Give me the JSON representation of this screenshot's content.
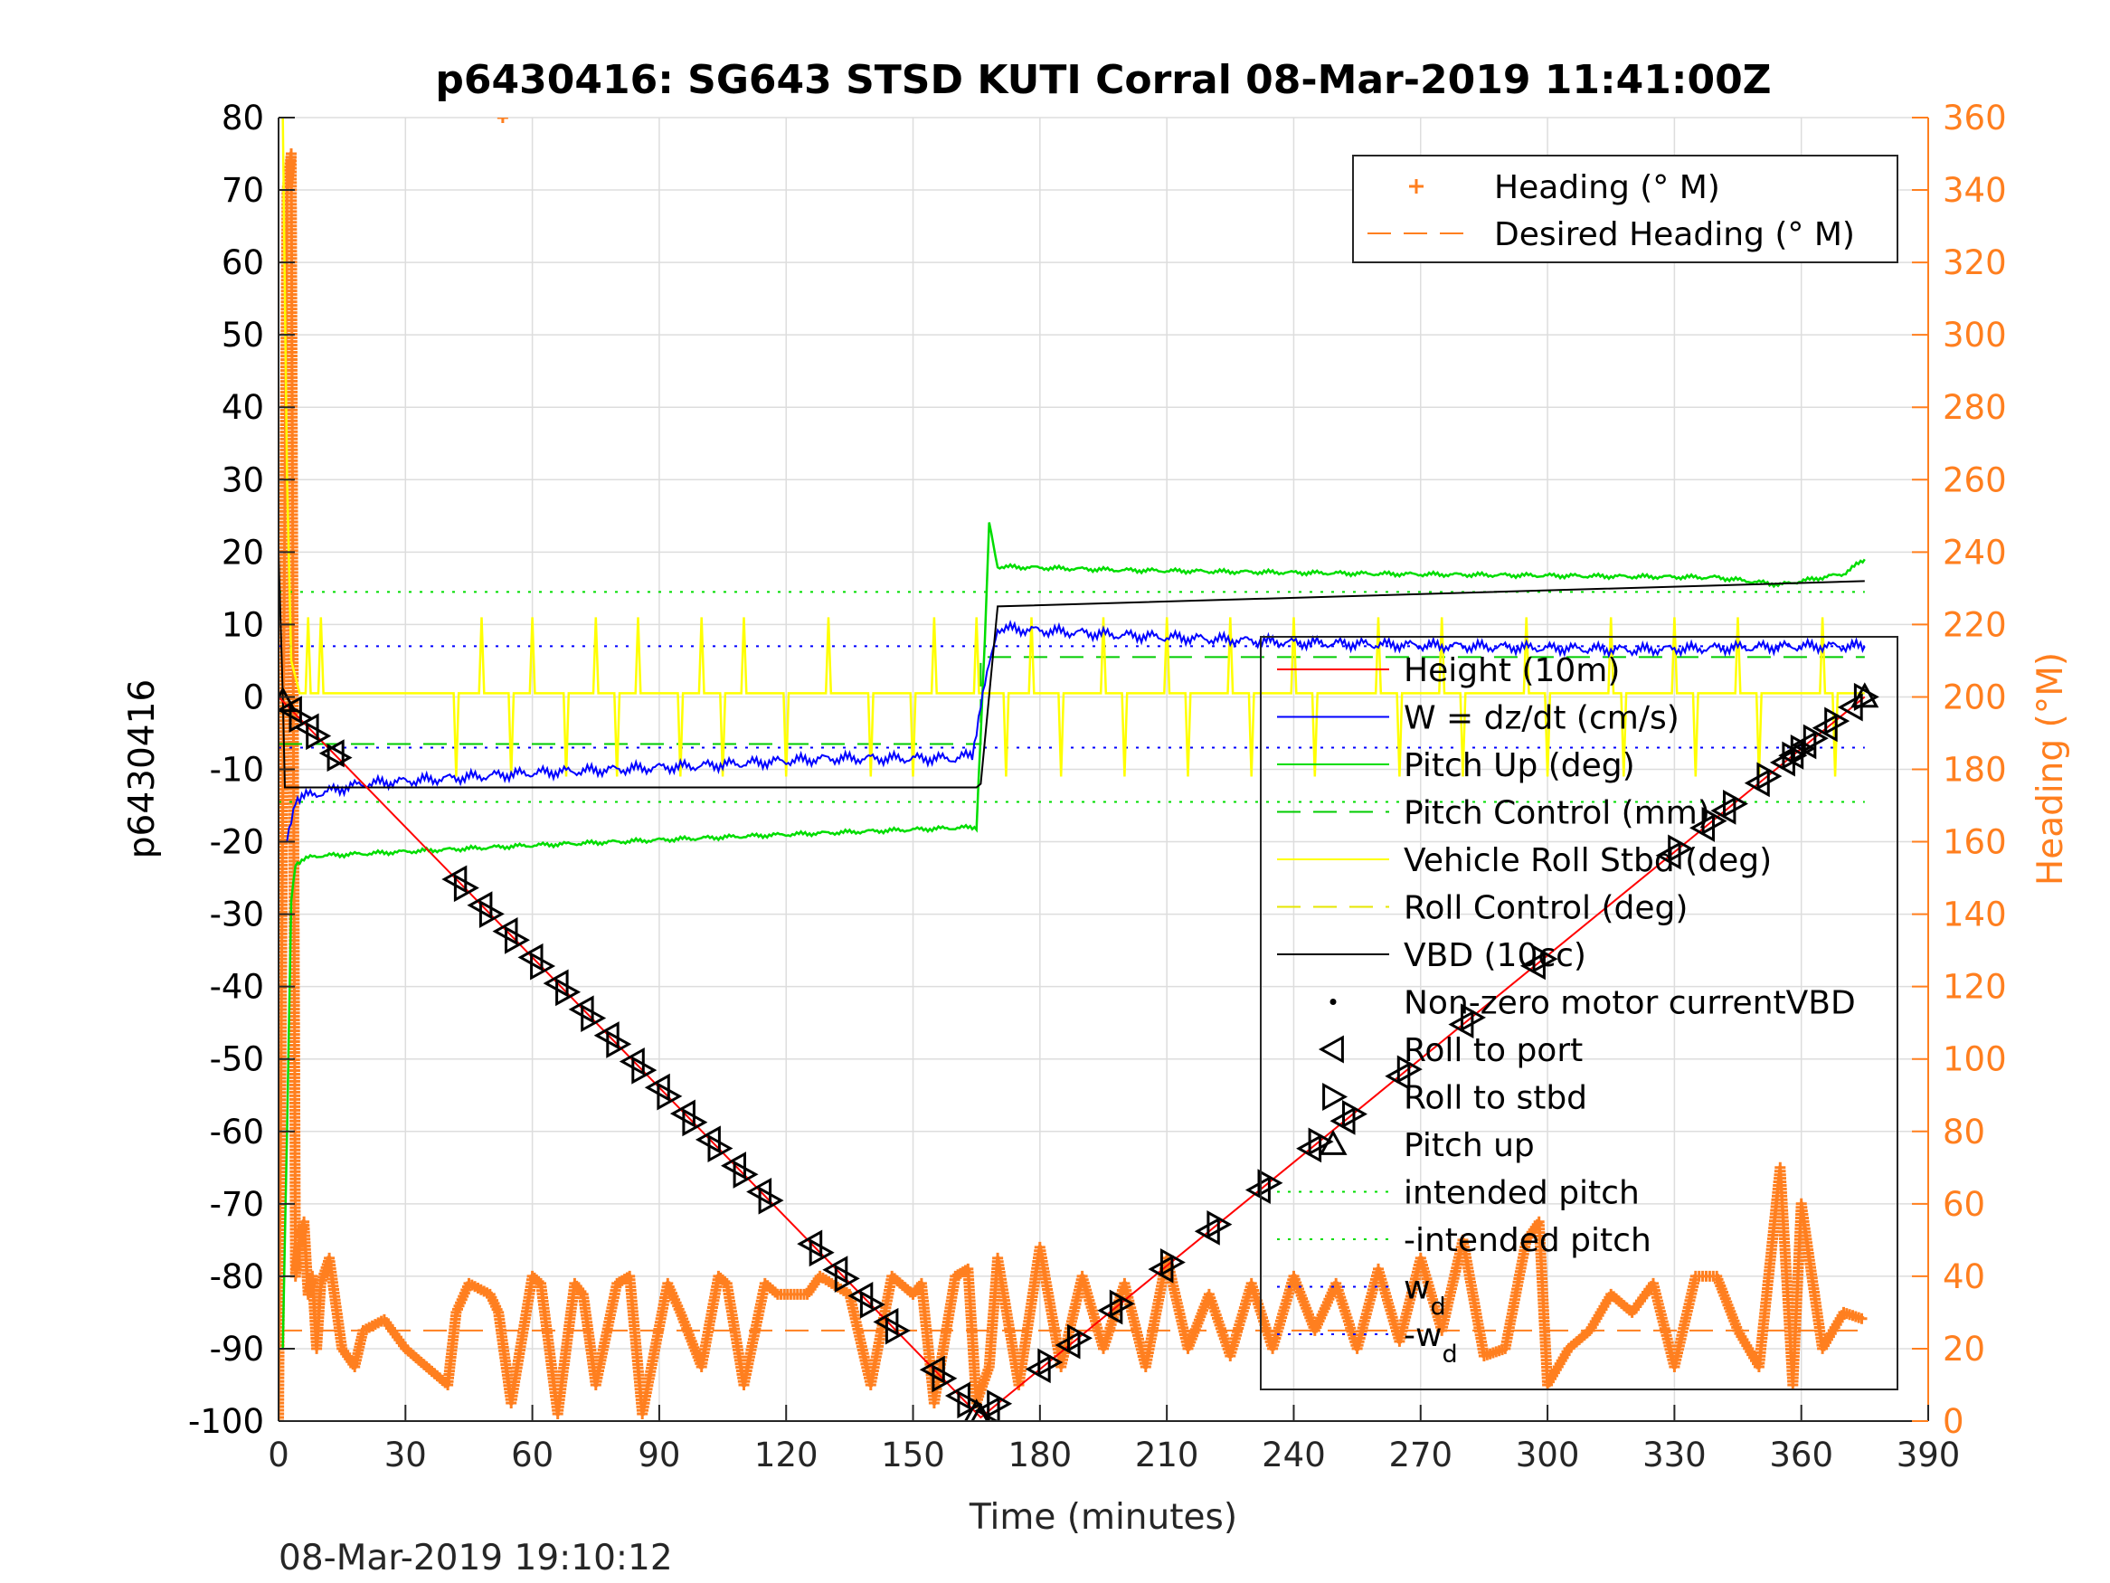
{
  "figure": {
    "timestamp": "08-Mar-2019 19:10:12"
  },
  "chart_data": {
    "type": "line",
    "title": "p6430416: SG643 STSD KUTI Corral 08-Mar-2019 11:41:00Z",
    "xlabel": "Time (minutes)",
    "ylabel_left": "p6430416",
    "ylabel_right": "Heading (°M)",
    "xlim": [
      0,
      390
    ],
    "ylim_left": [
      -100,
      80
    ],
    "ylim_right": [
      0,
      360
    ],
    "xticks": [
      "0",
      "30",
      "60",
      "90",
      "120",
      "150",
      "180",
      "210",
      "240",
      "270",
      "300",
      "330",
      "360",
      "390"
    ],
    "yticks_left": [
      "80",
      "70",
      "60",
      "50",
      "40",
      "30",
      "20",
      "10",
      "0",
      "-10",
      "-20",
      "-30",
      "-40",
      "-50",
      "-60",
      "-70",
      "-80",
      "-90",
      "-100"
    ],
    "yticks_right": [
      "360",
      "340",
      "320",
      "300",
      "280",
      "260",
      "240",
      "220",
      "200",
      "180",
      "160",
      "140",
      "120",
      "100",
      "80",
      "60",
      "40",
      "20",
      "0"
    ],
    "grid": true,
    "colors": {
      "height": "#ff0000",
      "w": "#0000ff",
      "pitch": "#00dd00",
      "pitch_control": "#00cc00",
      "roll": "#ffff00",
      "roll_control": "#e6e600",
      "vbd": "#000000",
      "heading": "#ff7f1f",
      "axis": "#262626"
    },
    "legend_heading": {
      "position": "top-right",
      "entries": [
        {
          "label": "Heading (° M)",
          "marker": "plus",
          "color": "#ff7f1f"
        },
        {
          "label": "Desired Heading (° M)",
          "marker": "dash",
          "color": "#ff7f1f"
        }
      ]
    },
    "legend_main": {
      "position": "right",
      "entries": [
        {
          "label": "Height (10m)",
          "marker": "line",
          "color": "#ff0000"
        },
        {
          "label": "W = dz/dt (cm/s)",
          "marker": "line",
          "color": "#0000ff"
        },
        {
          "label": "Pitch Up (deg)",
          "marker": "line",
          "color": "#00dd00"
        },
        {
          "label": "Pitch Control (mm)",
          "marker": "dash",
          "color": "#00cc00"
        },
        {
          "label": "Vehicle Roll Stbd (deg)",
          "marker": "line",
          "color": "#ffff00"
        },
        {
          "label": "Roll Control (deg)",
          "marker": "dash",
          "color": "#e6e600"
        },
        {
          "label": "VBD (10cc)",
          "marker": "line",
          "color": "#000000"
        },
        {
          "label": "Non-zero motor currentVBD",
          "marker": "dot",
          "color": "#000000"
        },
        {
          "label": "Roll to port",
          "marker": "tri-left",
          "color": "#000000"
        },
        {
          "label": "Roll to stbd",
          "marker": "tri-right",
          "color": "#000000"
        },
        {
          "label": "Pitch up",
          "marker": "tri-up",
          "color": "#000000"
        },
        {
          "label": "intended pitch",
          "marker": "dot-line",
          "color": "#00dd00"
        },
        {
          "label": "-intended pitch",
          "marker": "dot-line",
          "color": "#00dd00"
        },
        {
          "label": "w",
          "sub": "d",
          "marker": "dot-line",
          "color": "#0000ff"
        },
        {
          "label": "-w",
          "sub": "d",
          "marker": "dot-line",
          "color": "#0000ff"
        }
      ]
    },
    "series": [
      {
        "name": "Height (10m)",
        "axis": "left",
        "x": [
          0,
          166,
          375
        ],
        "y": [
          0,
          -99.5,
          0
        ]
      },
      {
        "name": "VBD (10cc)",
        "axis": "left",
        "x": [
          0,
          1,
          1.5,
          165,
          166,
          170,
          375
        ],
        "y": [
          20,
          0,
          -12.5,
          -12.5,
          -12,
          12.5,
          16
        ]
      },
      {
        "name": "Pitch Up (deg)",
        "axis": "left",
        "x": [
          1,
          2,
          3,
          4,
          8,
          60,
          120,
          164,
          165,
          167,
          168,
          170,
          200,
          260,
          340,
          355,
          370,
          375
        ],
        "y": [
          -90,
          -60,
          -28,
          -23,
          -22,
          -20.5,
          -19,
          -18,
          -18,
          8,
          24,
          18,
          17.5,
          17,
          16.5,
          15.5,
          17,
          19
        ]
      },
      {
        "name": "W = dz/dt (cm/s)",
        "axis": "left",
        "x": [
          2,
          4,
          20,
          60,
          100,
          130,
          160,
          164,
          166,
          170,
          200,
          240,
          280,
          320,
          360,
          375
        ],
        "y": [
          -20,
          -14,
          -12,
          -10.5,
          -9.5,
          -8.5,
          -8.5,
          -8,
          -1,
          9.5,
          8.5,
          7.5,
          7,
          6.5,
          7,
          7
        ]
      },
      {
        "name": "Desired Heading (° M)",
        "axis": "right",
        "x": [
          0,
          375
        ],
        "y": [
          25,
          25
        ]
      },
      {
        "name": "intended pitch",
        "axis": "left",
        "x": [
          0,
          375
        ],
        "y": [
          14.5,
          14.5
        ]
      },
      {
        "name": "-intended pitch",
        "axis": "left",
        "x": [
          0,
          375
        ],
        "y": [
          -14.5,
          -14.5
        ]
      },
      {
        "name": "w",
        "axis": "left",
        "x": [
          0,
          375
        ],
        "y": [
          7,
          7
        ]
      },
      {
        "name": "-w",
        "axis": "left",
        "x": [
          0,
          375
        ],
        "y": [
          -7,
          -7
        ]
      },
      {
        "name": "Pitch Control (mm)",
        "axis": "left",
        "x": [
          0,
          166,
          166,
          375
        ],
        "y": [
          -6.5,
          -6.5,
          5.5,
          5.5
        ]
      },
      {
        "name": "Vehicle Roll Stbd (deg)",
        "axis": "left",
        "base": 0.5,
        "spikes_up_x": [
          7,
          10,
          48,
          60,
          75,
          85,
          100,
          110,
          130,
          155,
          165,
          178,
          195,
          210,
          225,
          240,
          260,
          275,
          295,
          315,
          330,
          345,
          365
        ],
        "spikes_down_x": [
          42,
          55,
          68,
          80,
          95,
          105,
          120,
          140,
          150,
          172,
          185,
          200,
          215,
          230,
          245,
          265,
          280,
          300,
          318,
          335,
          350,
          368
        ],
        "early_peak": {
          "x": [
            1,
            2,
            3,
            5
          ],
          "y": [
            80,
            30,
            5,
            0.5
          ]
        }
      },
      {
        "name": "Heading (° M)",
        "axis": "right",
        "x": [
          0,
          2,
          3,
          4,
          5,
          6,
          7,
          8,
          9,
          10,
          12,
          15,
          18,
          20,
          25,
          30,
          35,
          40,
          42,
          45,
          50,
          52,
          55,
          60,
          62,
          66,
          70,
          72,
          75,
          80,
          83,
          86,
          92,
          95,
          100,
          104,
          106,
          110,
          115,
          118,
          125,
          128,
          135,
          140,
          145,
          150,
          152,
          155,
          160,
          163,
          165,
          168,
          170,
          175,
          180,
          185,
          190,
          195,
          200,
          205,
          210,
          215,
          220,
          225,
          230,
          235,
          240,
          245,
          250,
          255,
          260,
          265,
          270,
          275,
          280,
          285,
          290,
          295,
          298,
          300,
          305,
          310,
          315,
          320,
          325,
          330,
          335,
          340,
          345,
          350,
          355,
          358,
          360,
          365,
          370,
          375
        ],
        "y": [
          0,
          340,
          350,
          40,
          50,
          55,
          35,
          40,
          20,
          38,
          45,
          20,
          15,
          25,
          28,
          20,
          15,
          10,
          30,
          38,
          35,
          30,
          5,
          40,
          38,
          2,
          38,
          35,
          10,
          38,
          40,
          2,
          38,
          30,
          15,
          40,
          38,
          10,
          38,
          35,
          35,
          40,
          35,
          10,
          40,
          35,
          38,
          5,
          40,
          42,
          5,
          15,
          45,
          10,
          48,
          15,
          40,
          20,
          38,
          15,
          45,
          20,
          35,
          18,
          38,
          20,
          40,
          25,
          38,
          20,
          42,
          22,
          45,
          25,
          50,
          18,
          20,
          50,
          55,
          10,
          20,
          25,
          35,
          30,
          38,
          15,
          40,
          40,
          25,
          15,
          70,
          10,
          60,
          20,
          30,
          28
        ]
      }
    ],
    "events": {
      "roll_to_port_x": [
        3,
        7,
        13,
        42,
        48,
        54,
        60,
        66,
        72,
        78,
        84,
        90,
        96,
        102,
        108,
        114,
        126,
        132,
        138,
        144,
        155,
        161,
        168,
        180,
        187,
        197,
        209,
        220,
        232,
        244,
        252,
        265,
        280,
        297,
        329,
        337,
        342,
        350,
        356,
        358,
        361,
        366,
        372
      ],
      "roll_to_stbd_x": [
        5,
        9,
        14,
        44,
        50,
        56,
        62,
        68,
        74,
        80,
        86,
        92,
        98,
        104,
        110,
        116,
        128,
        134,
        140,
        146,
        157,
        163,
        170,
        182,
        189,
        199,
        211,
        222,
        234,
        246,
        254,
        267,
        282,
        299,
        331,
        339,
        344,
        352,
        358,
        360,
        363,
        368,
        375
      ],
      "pitch_up_x": [
        1,
        165,
        166,
        375
      ]
    }
  }
}
